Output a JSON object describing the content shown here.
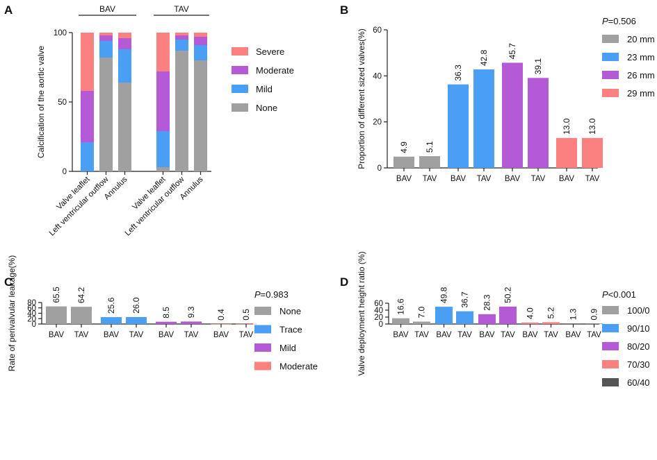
{
  "chart_data": [
    {
      "panel": "A",
      "type": "bar",
      "stacked": true,
      "ylabel": "Calcification of the aortic valve",
      "ylim": [
        0,
        100
      ],
      "yticks": [
        0,
        50,
        100
      ],
      "groups": [
        {
          "label": "BAV",
          "categories": [
            "Valve leaflet",
            "Left ventricular outflow",
            "Annulus"
          ]
        },
        {
          "label": "TAV",
          "categories": [
            "Valve leaflet",
            "Left ventricular outflow",
            "Annulus"
          ]
        }
      ],
      "series": [
        {
          "name": "None",
          "color": "#a0a0a0",
          "values": [
            0,
            82,
            64,
            3,
            87,
            80
          ]
        },
        {
          "name": "Mild",
          "color": "#4a9ff5",
          "values": [
            21,
            12,
            24,
            26,
            8,
            11
          ]
        },
        {
          "name": "Moderate",
          "color": "#b45ad6",
          "values": [
            37,
            4,
            8,
            43,
            3,
            6
          ]
        },
        {
          "name": "Severe",
          "color": "#fb8080",
          "values": [
            42,
            2,
            4,
            28,
            2,
            3
          ]
        }
      ],
      "legend": [
        "Severe",
        "Moderate",
        "Mild",
        "None"
      ]
    },
    {
      "panel": "B",
      "type": "bar",
      "ylabel": "Proportion of different sized valves(%)",
      "ylim": [
        0,
        60
      ],
      "yticks": [
        0,
        20,
        40,
        60
      ],
      "pvalue": "=0.506",
      "categories": [
        "BAV",
        "TAV",
        "BAV",
        "TAV",
        "BAV",
        "TAV",
        "BAV",
        "TAV"
      ],
      "values": [
        4.9,
        5.1,
        36.3,
        42.8,
        45.7,
        39.1,
        13.0,
        13.0
      ],
      "value_labels": [
        "4.9",
        "5.1",
        "36.3",
        "42.8",
        "45.7",
        "39.1",
        "13.0",
        "13.0"
      ],
      "bar_series": [
        0,
        0,
        1,
        1,
        2,
        2,
        3,
        3
      ],
      "series": [
        {
          "name": "20 mm",
          "color": "#a0a0a0"
        },
        {
          "name": "23 mm",
          "color": "#4a9ff5"
        },
        {
          "name": "26 mm",
          "color": "#b45ad6"
        },
        {
          "name": "29 mm",
          "color": "#fb8080"
        }
      ]
    },
    {
      "panel": "C",
      "type": "bar",
      "ylabel": "Rate of perivalvular leakage(%)",
      "ylim": [
        0,
        80
      ],
      "yticks": [
        0,
        20,
        40,
        60,
        80
      ],
      "pvalue": "=0.983",
      "categories": [
        "BAV",
        "TAV",
        "BAV",
        "TAV",
        "BAV",
        "TAV",
        "BAV",
        "TAV"
      ],
      "values": [
        65.5,
        64.2,
        25.6,
        26.0,
        8.5,
        9.3,
        0.4,
        0.5
      ],
      "value_labels": [
        "65.5",
        "64.2",
        "25.6",
        "26.0",
        "8.5",
        "9.3",
        "0.4",
        "0.5"
      ],
      "bar_series": [
        0,
        0,
        1,
        1,
        2,
        2,
        3,
        3
      ],
      "series": [
        {
          "name": "None",
          "color": "#a0a0a0"
        },
        {
          "name": "Trace",
          "color": "#4a9ff5"
        },
        {
          "name": "Mild",
          "color": "#b45ad6"
        },
        {
          "name": "Moderate",
          "color": "#fb8080"
        }
      ]
    },
    {
      "panel": "D",
      "type": "bar",
      "ylabel": "Valve deployment height ratio (%)",
      "ylim": [
        0,
        60
      ],
      "yticks": [
        0,
        20,
        40,
        60
      ],
      "pvalue": "<0.001",
      "categories": [
        "BAV",
        "TAV",
        "BAV",
        "TAV",
        "BAV",
        "TAV",
        "BAV",
        "TAV",
        "BAV",
        "TAV"
      ],
      "values": [
        16.6,
        7.0,
        49.8,
        36.7,
        28.3,
        50.2,
        4.0,
        5.2,
        1.3,
        0.9
      ],
      "value_labels": [
        "16.6",
        "7.0",
        "49.8",
        "36.7",
        "28.3",
        "50.2",
        "4.0",
        "5.2",
        "1.3",
        "0.9"
      ],
      "bar_series": [
        0,
        0,
        1,
        1,
        2,
        2,
        3,
        3,
        4,
        4
      ],
      "series": [
        {
          "name": "100/0",
          "color": "#a0a0a0"
        },
        {
          "name": "90/10",
          "color": "#4a9ff5"
        },
        {
          "name": "80/20",
          "color": "#b45ad6"
        },
        {
          "name": "70/30",
          "color": "#fb8080"
        },
        {
          "name": "60/40",
          "color": "#555555"
        }
      ]
    }
  ],
  "panel_letters": {
    "a": "A",
    "b": "B",
    "c": "C",
    "d": "D"
  },
  "pvalue_prefix": "P"
}
